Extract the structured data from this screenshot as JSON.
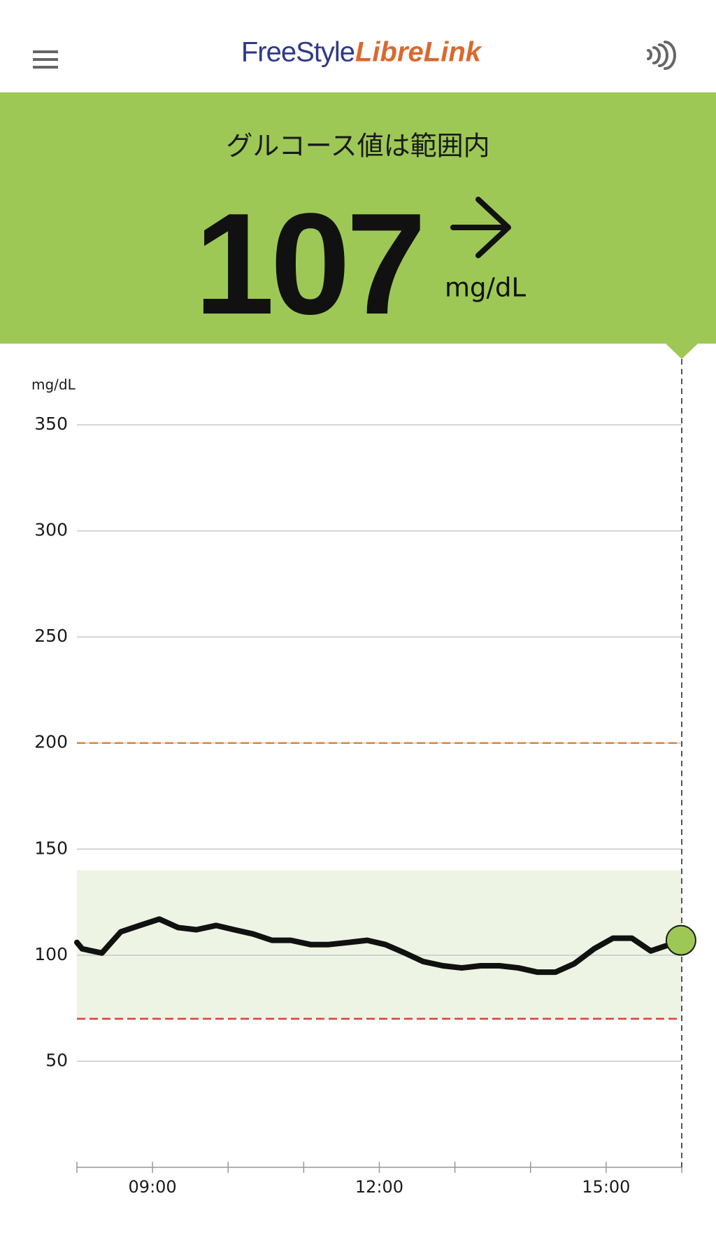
{
  "header": {
    "brand": "FreeStyle",
    "product": "LibreLink"
  },
  "status": {
    "title": "グルコース値は範囲内",
    "value": 107,
    "unit": "mg/dL"
  },
  "chart_data": {
    "type": "line",
    "y_label": "mg/dL",
    "x": [
      8.0,
      8.07,
      8.33,
      8.58,
      8.83,
      9.09,
      9.34,
      9.58,
      9.84,
      10.08,
      10.33,
      10.58,
      10.83,
      11.09,
      11.33,
      11.59,
      11.84,
      12.08,
      12.34,
      12.58,
      12.84,
      13.09,
      13.34,
      13.59,
      13.84,
      14.09,
      14.33,
      14.58,
      14.84,
      15.09,
      15.34,
      15.59,
      15.84,
      15.99
    ],
    "series": [
      {
        "name": "Glucose",
        "color": "#111111",
        "values": [
          106,
          103,
          101,
          111,
          114,
          117,
          113,
          112,
          114,
          112,
          110,
          107,
          107,
          105,
          105,
          106,
          107,
          105,
          101,
          97,
          95,
          94,
          95,
          95,
          94,
          92,
          92,
          96,
          103,
          108,
          108,
          102,
          105,
          107
        ]
      }
    ],
    "xlim": [
      8,
      16
    ],
    "xticks": [
      {
        "value": 9,
        "label": "09:00"
      },
      {
        "value": 12,
        "label": "12:00"
      },
      {
        "value": 15,
        "label": "15:00"
      }
    ],
    "xminorticks": [
      8,
      10,
      11,
      13,
      14,
      16
    ],
    "ylim": [
      0,
      350
    ],
    "yticks": [
      50,
      100,
      150,
      200,
      250,
      300,
      350
    ],
    "grid": true,
    "target_range": [
      70,
      140
    ],
    "target_color": "#eef4e3",
    "thresholds": [
      {
        "value": 200,
        "color": "#e0833a"
      },
      {
        "value": 70,
        "color": "#d9403c"
      }
    ],
    "marker_color": "#9dc855"
  }
}
